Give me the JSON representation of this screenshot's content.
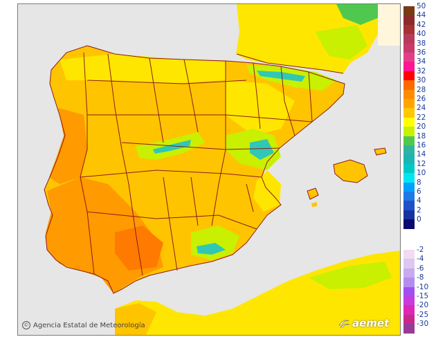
{
  "credit_text": "Agencia Estatal de Meteorología",
  "logo_text": "aemet",
  "legend_positive": [
    {
      "label": "50",
      "color": "#7a3a14"
    },
    {
      "label": "44",
      "color": "#8c2a2a"
    },
    {
      "label": "42",
      "color": "#a53232"
    },
    {
      "label": "40",
      "color": "#b83a5a"
    },
    {
      "label": "38",
      "color": "#c83a6a"
    },
    {
      "label": "36",
      "color": "#e0408a"
    },
    {
      "label": "34",
      "color": "#ff1493"
    },
    {
      "label": "32",
      "color": "#ff0000"
    },
    {
      "label": "30",
      "color": "#ff6a00"
    },
    {
      "label": "28",
      "color": "#ff8c00"
    },
    {
      "label": "26",
      "color": "#ffa500"
    },
    {
      "label": "24",
      "color": "#ffc800"
    },
    {
      "label": "22",
      "color": "#ffff00"
    },
    {
      "label": "20",
      "color": "#c8f000"
    },
    {
      "label": "18",
      "color": "#50c850"
    },
    {
      "label": "16",
      "color": "#30b4a0"
    },
    {
      "label": "14",
      "color": "#1eb4b4"
    },
    {
      "label": "12",
      "color": "#00c8c8"
    },
    {
      "label": "10",
      "color": "#00e6f0"
    },
    {
      "label": "8",
      "color": "#00a0ff"
    },
    {
      "label": "6",
      "color": "#1e78e6"
    },
    {
      "label": "4",
      "color": "#1e50c8"
    },
    {
      "label": "2",
      "color": "#1432a0"
    },
    {
      "label": "0",
      "color": "#0a0a6e"
    }
  ],
  "legend_negative": [
    {
      "label": "-2",
      "color": "#f0dcf0"
    },
    {
      "label": "-4",
      "color": "#dcc8f0"
    },
    {
      "label": "-6",
      "color": "#c8aaf0"
    },
    {
      "label": "-8",
      "color": "#b48cf0"
    },
    {
      "label": "-10",
      "color": "#a050f0"
    },
    {
      "label": "-15",
      "color": "#c83cdc"
    },
    {
      "label": "-20",
      "color": "#dc28b4"
    },
    {
      "label": "-25",
      "color": "#c8288c"
    },
    {
      "label": "-30",
      "color": "#963c96"
    }
  ],
  "colors": {
    "sea": "#e6e6e6",
    "land_warm": "#ff9a00",
    "land_mid": "#ffc400",
    "land_mild": "#ffe600",
    "land_cool": "#c8f000",
    "mountain": "#30c8b4",
    "border": "#8b1a1a"
  }
}
